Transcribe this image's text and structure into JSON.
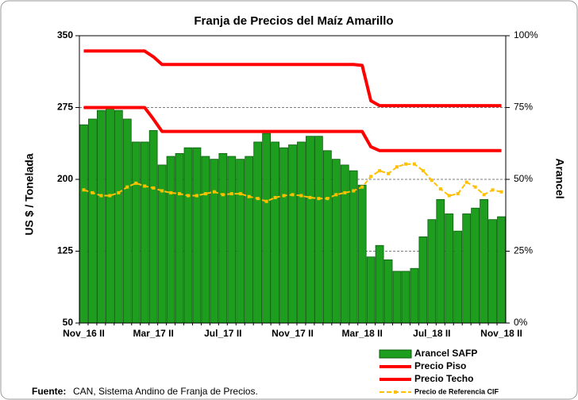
{
  "chart_data": {
    "type": "bar-line",
    "title": "Franja de Precios del Maíz Amarillo",
    "ylabel": "US $ / Tonelada",
    "y2label": "Arancel",
    "source_label": "Fuente:",
    "source": "CAN, Sistema Andino de Franja de Precios.",
    "categories": [
      "Nov_16 II",
      null,
      null,
      null,
      null,
      null,
      null,
      null,
      "Mar_17 II",
      null,
      null,
      null,
      null,
      null,
      null,
      null,
      "Jul_17 II",
      null,
      null,
      null,
      null,
      null,
      null,
      null,
      "Nov_17 II",
      null,
      null,
      null,
      null,
      null,
      null,
      null,
      "Mar_18 II",
      null,
      null,
      null,
      null,
      null,
      null,
      null,
      "Jul_18 II",
      null,
      null,
      null,
      null,
      null,
      null,
      null,
      "Nov_18 II"
    ],
    "series": [
      {
        "name": "Arancel SAFP",
        "kind": "bar",
        "axis": "y2",
        "color": "#1e9e1e",
        "values": [
          69,
          71,
          74,
          75,
          74,
          71,
          63,
          63,
          67,
          55,
          58,
          59,
          61,
          61,
          58,
          57,
          59,
          58,
          57,
          58,
          63,
          66,
          63,
          61,
          62,
          63,
          65,
          65,
          60,
          57,
          55,
          53,
          48,
          23,
          27,
          22,
          18,
          18,
          19,
          30,
          36,
          43,
          38,
          32,
          38,
          40,
          43,
          36,
          37
        ]
      },
      {
        "name": "Precio Piso",
        "kind": "line",
        "color": "#ff0000",
        "values": [
          275,
          275,
          275,
          275,
          275,
          275,
          275,
          275,
          263,
          250,
          250,
          250,
          250,
          250,
          250,
          250,
          250,
          250,
          250,
          250,
          250,
          250,
          250,
          250,
          250,
          250,
          250,
          250,
          250,
          250,
          250,
          250,
          250,
          234,
          230,
          230,
          230,
          230,
          230,
          230,
          230,
          230,
          230,
          230,
          230,
          230,
          230,
          230,
          230
        ]
      },
      {
        "name": "Precio Techo",
        "kind": "line",
        "color": "#ff0000",
        "values": [
          334,
          334,
          334,
          334,
          334,
          334,
          334,
          334,
          328,
          320,
          320,
          320,
          320,
          320,
          320,
          320,
          320,
          320,
          320,
          320,
          320,
          320,
          320,
          320,
          320,
          320,
          320,
          320,
          320,
          320,
          320,
          320,
          319,
          282,
          277,
          277,
          277,
          277,
          277,
          277,
          277,
          277,
          277,
          277,
          277,
          277,
          277,
          277,
          277
        ]
      },
      {
        "name": "Precio de Referencia CIF",
        "kind": "dashline",
        "color": "#ffc000",
        "values": [
          189,
          186,
          183,
          183,
          186,
          192,
          196,
          193,
          191,
          188,
          186,
          185,
          183,
          183,
          185,
          187,
          184,
          185,
          185,
          182,
          180,
          177,
          181,
          183,
          184,
          183,
          181,
          180,
          180,
          184,
          186,
          188,
          192,
          203,
          209,
          206,
          213,
          216,
          216,
          209,
          199,
          190,
          183,
          185,
          197,
          192,
          184,
          189,
          187
        ]
      }
    ],
    "ylim": [
      50,
      350
    ],
    "yticks": [
      50,
      125,
      200,
      275,
      350
    ],
    "y2lim": [
      0,
      100
    ],
    "y2ticks": [
      {
        "value": 0,
        "label": "0%"
      },
      {
        "value": 25,
        "label": "25%"
      },
      {
        "value": 50,
        "label": "50%"
      },
      {
        "value": 75,
        "label": "75%"
      },
      {
        "value": 100,
        "label": "100%"
      }
    ],
    "grid": true
  }
}
